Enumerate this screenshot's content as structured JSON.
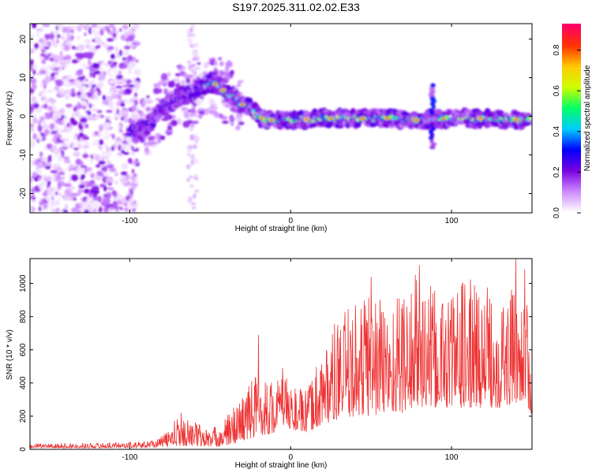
{
  "title": "S197.2025.311.02.02.E33",
  "chart_data": [
    {
      "type": "heatmap",
      "name": "spectrogram",
      "xlabel": "Height of straight line (km)",
      "ylabel": "Frequency (Hz)",
      "xlim": [
        -162,
        150
      ],
      "ylim": [
        -25,
        24
      ],
      "xticks": [
        -100,
        0,
        100
      ],
      "yticks": [
        -20,
        -10,
        0,
        10,
        20
      ],
      "colorbar": {
        "label": "Normalized spectral amplitude",
        "range": [
          0.0,
          0.93
        ],
        "ticks": [
          0.0,
          0.2,
          0.4,
          0.6,
          0.8
        ],
        "tick_labels": [
          "0.0",
          "0.2",
          "0.4",
          "0.6",
          "0.8"
        ],
        "colors": [
          "#ffffff",
          "#cc88ff",
          "#7a00e0",
          "#0000ff",
          "#00ccff",
          "#00ff66",
          "#ccff00",
          "#ffcc00",
          "#ff3300",
          "#ff0066"
        ]
      },
      "ridge": {
        "x": [
          -100,
          -90,
          -80,
          -70,
          -60,
          -50,
          -45,
          -40,
          -35,
          -30,
          -25,
          -20,
          -15,
          -10,
          0,
          20,
          40,
          60,
          80,
          100,
          120,
          145
        ],
        "y": [
          -5,
          -3,
          2,
          5,
          6,
          9,
          8,
          6,
          5,
          3,
          2,
          0,
          -1,
          -1,
          -1,
          -0.5,
          -0.5,
          -0.5,
          -1,
          -0.5,
          -0.5,
          -1
        ]
      },
      "bursts": [
        {
          "x": 88,
          "y_range": [
            -8,
            8
          ]
        }
      ],
      "noise_region": {
        "x_range": [
          -162,
          -95
        ],
        "y_range": [
          -25,
          24
        ]
      }
    },
    {
      "type": "line",
      "name": "snr",
      "xlabel": "Height of straight line (km)",
      "ylabel": "SNR (10 * v/v)",
      "xlim": [
        -162,
        150
      ],
      "ylim": [
        0,
        1150
      ],
      "xticks": [
        -100,
        0,
        100
      ],
      "yticks": [
        0,
        200,
        400,
        600,
        800,
        1000
      ],
      "color": "#ee3333",
      "envelope": {
        "x": [
          -162,
          -120,
          -90,
          -80,
          -70,
          -60,
          -50,
          -40,
          -30,
          -20,
          -10,
          -5,
          0,
          10,
          20,
          30,
          40,
          50,
          60,
          70,
          80,
          90,
          100,
          110,
          120,
          130,
          140,
          145,
          150
        ],
        "low": [
          8,
          8,
          10,
          15,
          20,
          20,
          15,
          20,
          50,
          80,
          100,
          150,
          120,
          100,
          150,
          180,
          200,
          200,
          220,
          220,
          250,
          250,
          250,
          250,
          250,
          250,
          280,
          300,
          200
        ],
        "high": [
          35,
          40,
          50,
          80,
          200,
          180,
          120,
          200,
          350,
          500,
          400,
          480,
          400,
          350,
          650,
          800,
          900,
          1050,
          900,
          1000,
          1100,
          950,
          1000,
          1050,
          1000,
          1000,
          950,
          1150,
          500
        ]
      },
      "peaks": [
        {
          "x": -68,
          "y": 220
        },
        {
          "x": -20,
          "y": 690
        },
        {
          "x": -5,
          "y": 490
        },
        {
          "x": 50,
          "y": 1040
        },
        {
          "x": 80,
          "y": 1110
        },
        {
          "x": 140,
          "y": 1150
        }
      ]
    }
  ]
}
